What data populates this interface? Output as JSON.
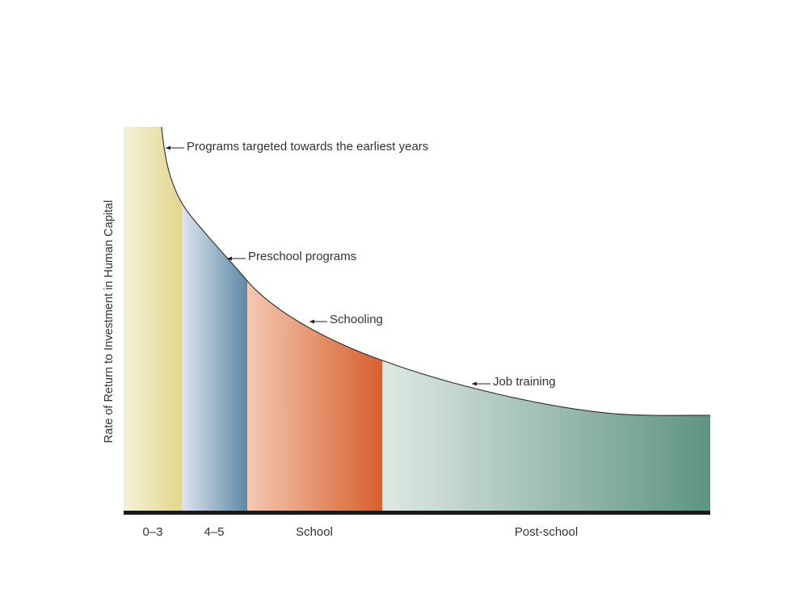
{
  "chart_data": {
    "type": "area",
    "title": "",
    "xlabel": "",
    "ylabel": "Rate of Return to Investment in Human Capital",
    "grid": false,
    "legend": "none",
    "segments": [
      {
        "label": "0–3",
        "color_light": "#f5f1d8",
        "color_dark": "#e3d68e"
      },
      {
        "label": "4–5",
        "color_light": "#dde5ee",
        "color_dark": "#5e89a6"
      },
      {
        "label": "School",
        "color_light": "#f5c8b2",
        "color_dark": "#d5602e"
      },
      {
        "label": "Post-school",
        "color_light": "#dfe9e4",
        "color_dark": "#5e9480"
      }
    ],
    "annotations": [
      {
        "text": "Programs targeted towards the earliest years",
        "segment": "0–3"
      },
      {
        "text": "Preschool programs",
        "segment": "4–5"
      },
      {
        "text": "Schooling",
        "segment": "School"
      },
      {
        "text": "Job training",
        "segment": "Post-school"
      }
    ],
    "curve": "declining rate of return with age; steep at earliest years, flattening in post-school"
  }
}
